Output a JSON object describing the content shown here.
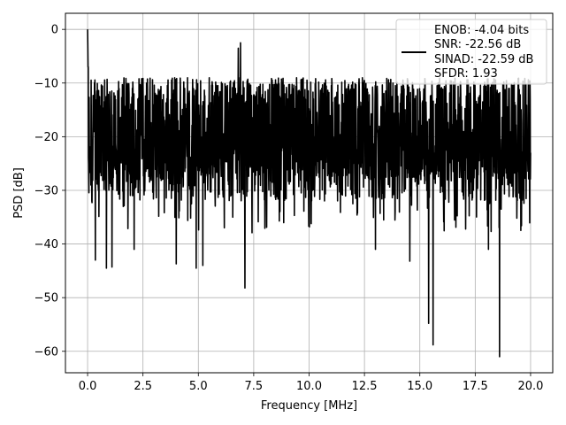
{
  "chart_data": {
    "type": "line",
    "xlabel": "Frequency [MHz]",
    "ylabel": "PSD [dB]",
    "xlim": [
      -1.0,
      21.0
    ],
    "ylim": [
      -64.0,
      3.0
    ],
    "x_ticks": [
      0.0,
      2.5,
      5.0,
      7.5,
      10.0,
      12.5,
      15.0,
      17.5,
      20.0
    ],
    "x_tick_labels": [
      "0.0",
      "2.5",
      "5.0",
      "7.5",
      "10.0",
      "12.5",
      "15.0",
      "17.5",
      "20.0"
    ],
    "y_ticks": [
      0,
      -10,
      -20,
      -30,
      -40,
      -50,
      -60
    ],
    "y_tick_labels": [
      "0",
      "−10",
      "−20",
      "−30",
      "−40",
      "−50",
      "−60"
    ],
    "grid": true,
    "legend_position": "upper right",
    "line_color": "#000000",
    "series": [
      {
        "name": "ENOB: -4.04 bits\nSNR: -22.56 dB\nSINAD: -22.59 dB\nSFDR: 1.93",
        "legend_lines": [
          "ENOB: -4.04 bits",
          "SNR: -22.56 dB",
          "SINAD: -22.59 dB",
          "SFDR: 1.93"
        ],
        "x_range": [
          0.0,
          20.0
        ],
        "points": 2000,
        "band_top_approx": -10,
        "band_bottom_approx": -30,
        "notable_points": [
          {
            "x": 0.0,
            "y": 0.0
          },
          {
            "x": 0.03,
            "y": -7.0
          },
          {
            "x": 0.35,
            "y": -43.0
          },
          {
            "x": 0.85,
            "y": -44.5
          },
          {
            "x": 1.1,
            "y": -44.3
          },
          {
            "x": 2.1,
            "y": -41.0
          },
          {
            "x": 4.0,
            "y": -43.7
          },
          {
            "x": 4.9,
            "y": -44.5
          },
          {
            "x": 5.2,
            "y": -44.0
          },
          {
            "x": 6.8,
            "y": -3.5
          },
          {
            "x": 6.9,
            "y": -2.5
          },
          {
            "x": 7.1,
            "y": -48.2
          },
          {
            "x": 13.0,
            "y": -41.0
          },
          {
            "x": 14.55,
            "y": -43.2
          },
          {
            "x": 15.4,
            "y": -54.8
          },
          {
            "x": 15.6,
            "y": -58.8
          },
          {
            "x": 18.1,
            "y": -41.0
          },
          {
            "x": 18.6,
            "y": -61.0
          }
        ]
      }
    ]
  }
}
